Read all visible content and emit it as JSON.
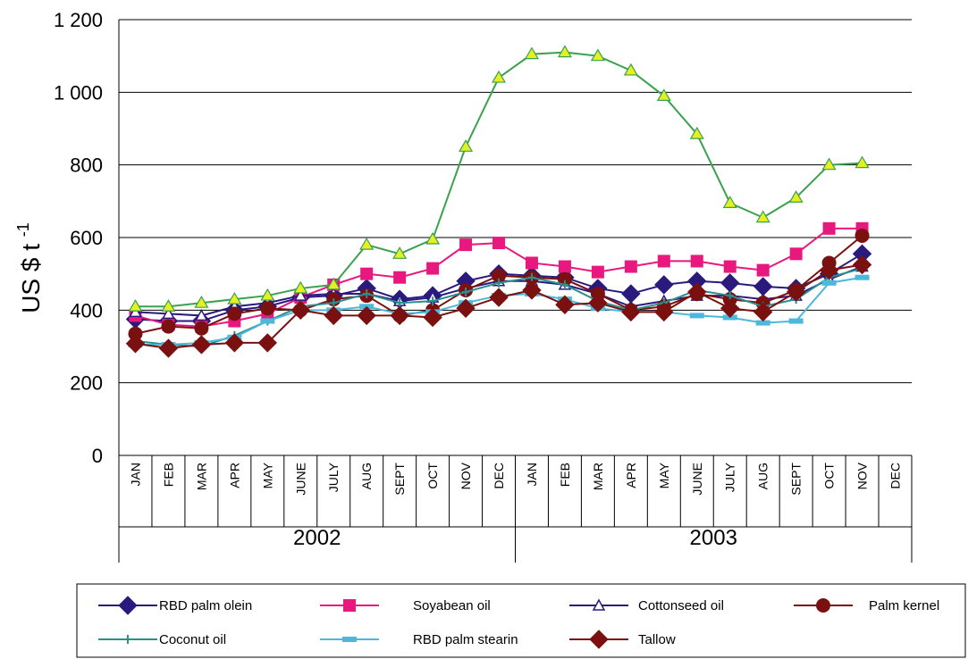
{
  "chart_data": {
    "type": "line",
    "ylabel": "US $ t",
    "ylabel_sup": "-1",
    "ylim": [
      0,
      1200
    ],
    "yticks": [
      0,
      200,
      400,
      600,
      800,
      1000,
      1200
    ],
    "ytick_labels": [
      "0",
      "200",
      "400",
      "600",
      "800",
      "1 000",
      "1 200"
    ],
    "grid": "horizontal",
    "legend_position": "bottom",
    "categories": [
      "JAN",
      "FEB",
      "MAR",
      "APR",
      "MAY",
      "JUNE",
      "JULY",
      "AUG",
      "SEPT",
      "OCT",
      "NOV",
      "DEC",
      "JAN",
      "FEB",
      "MAR",
      "APR",
      "MAY",
      "JUNE",
      "JULY",
      "AUG",
      "SEPT",
      "OCT",
      "NOV",
      "DEC"
    ],
    "years": [
      {
        "label": "2002",
        "start": 0,
        "end": 11
      },
      {
        "label": "2003",
        "start": 12,
        "end": 23
      }
    ],
    "series": [
      {
        "name": "RBD palm olein",
        "color": "#2b1a7d",
        "marker": "diamond",
        "values": [
          375,
          370,
          370,
          400,
          410,
          435,
          440,
          460,
          430,
          440,
          480,
          500,
          495,
          490,
          460,
          445,
          470,
          480,
          475,
          465,
          460,
          500,
          555,
          null
        ]
      },
      {
        "name": "Soyabean oil",
        "color": "#e8187f",
        "marker": "square",
        "values": [
          385,
          360,
          355,
          370,
          390,
          435,
          470,
          500,
          490,
          515,
          580,
          585,
          530,
          520,
          505,
          520,
          535,
          535,
          520,
          510,
          555,
          625,
          625,
          null
        ]
      },
      {
        "name": "Cottonseed oil",
        "color": "#2b1a7d",
        "marker": "triangle",
        "values": [
          395,
          390,
          385,
          410,
          420,
          440,
          445,
          445,
          425,
          435,
          460,
          480,
          480,
          470,
          445,
          410,
          425,
          440,
          440,
          430,
          440,
          485,
          520,
          null
        ]
      },
      {
        "name": "Palm kernel",
        "color": "#7a1010",
        "marker": "circle",
        "values": [
          335,
          355,
          350,
          390,
          405,
          400,
          430,
          440,
          385,
          400,
          455,
          495,
          490,
          485,
          445,
          400,
          410,
          445,
          430,
          420,
          455,
          530,
          605,
          null
        ]
      },
      {
        "name": "Coconut oil",
        "color": "#2a8f8f",
        "marker": "plus",
        "values": [
          315,
          305,
          300,
          330,
          370,
          410,
          420,
          445,
          420,
          425,
          450,
          475,
          490,
          470,
          425,
          400,
          420,
          455,
          440,
          410,
          430,
          490,
          515,
          null
        ]
      },
      {
        "name": "RBD palm stearin",
        "color": "#4db8dc",
        "marker": "dash",
        "values": [
          305,
          305,
          310,
          325,
          370,
          400,
          400,
          410,
          390,
          395,
          420,
          440,
          445,
          430,
          405,
          395,
          395,
          385,
          380,
          365,
          370,
          475,
          490,
          null
        ]
      },
      {
        "name": "Tallow",
        "color": "#7a1010",
        "marker": "diamond",
        "values": [
          308,
          295,
          305,
          310,
          310,
          400,
          385,
          385,
          385,
          380,
          405,
          435,
          455,
          415,
          420,
          395,
          395,
          450,
          405,
          395,
          450,
          510,
          525,
          null
        ]
      },
      {
        "name": "",
        "color": "#3aa14f",
        "marker": "triangle-yellow",
        "values": [
          410,
          410,
          420,
          430,
          440,
          460,
          470,
          580,
          555,
          595,
          850,
          1040,
          1105,
          1110,
          1100,
          1060,
          990,
          885,
          695,
          655,
          710,
          800,
          805,
          null
        ]
      }
    ]
  }
}
